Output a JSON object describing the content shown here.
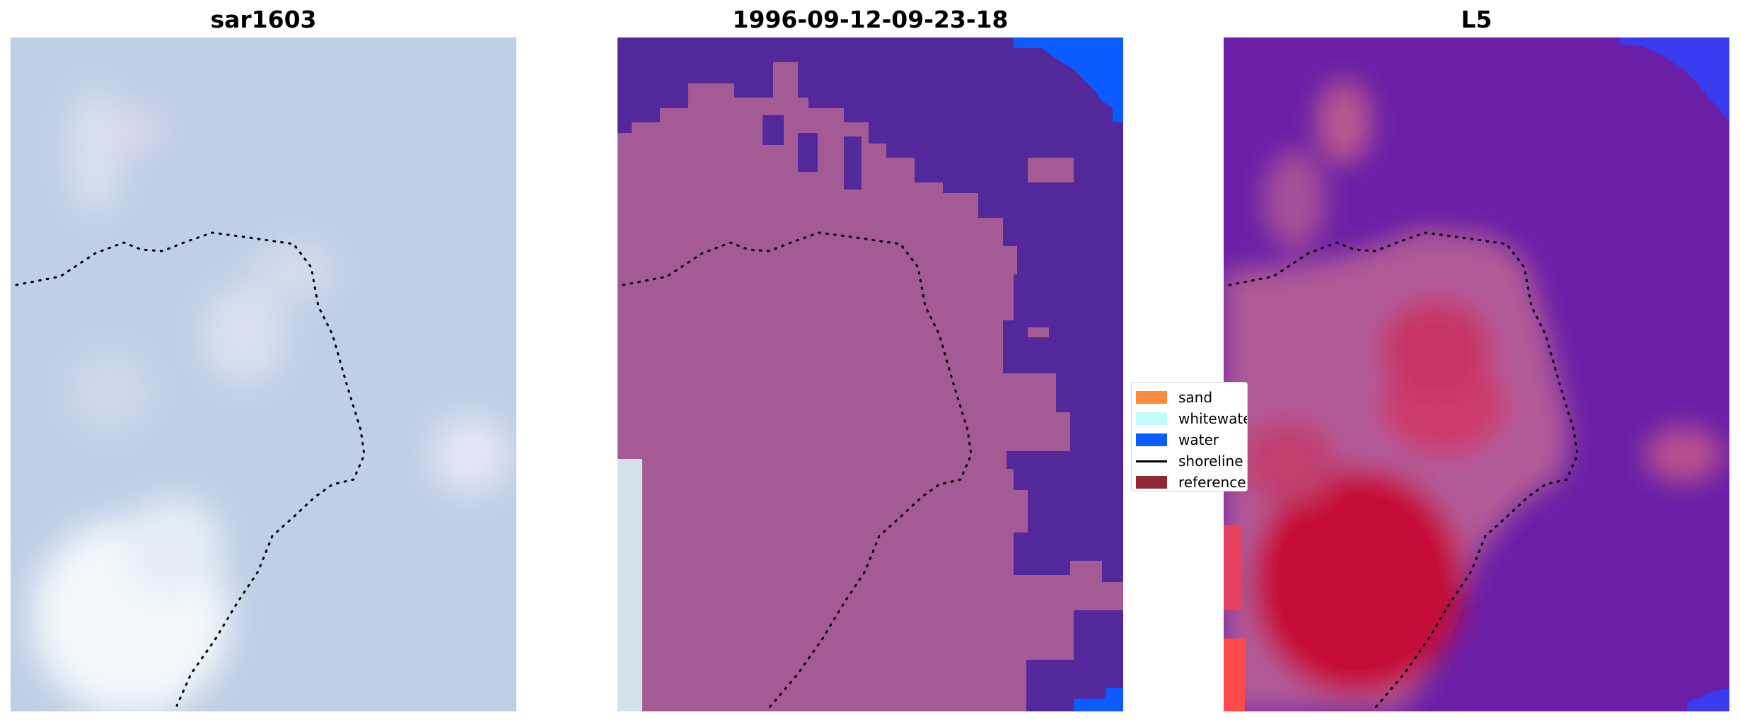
{
  "titles": {
    "left": "sar1603",
    "middle": "1996-09-12-09-23-18",
    "right": "L5"
  },
  "legend": [
    {
      "label": "sand",
      "color": "#ff8c3a",
      "kind": "patch"
    },
    {
      "label": "whitewater",
      "color": "#c4fafe",
      "kind": "patch"
    },
    {
      "label": "water",
      "color": "#0b5cff",
      "kind": "patch"
    },
    {
      "label": "shoreline",
      "color": "#000000",
      "kind": "line"
    },
    {
      "label": "reference",
      "color": "#8e2a33",
      "kind": "patch"
    }
  ],
  "colors": {
    "sar_background": "#bfcfe5",
    "classified_land": "#a05a94",
    "classified_water_class": "#53289a",
    "classified_water_blue": "#0b5cff",
    "probability_high": "#c40b38",
    "probability_mid": "#b8568c",
    "probability_low": "#6a1fa6",
    "shoreline": "#000000"
  }
}
